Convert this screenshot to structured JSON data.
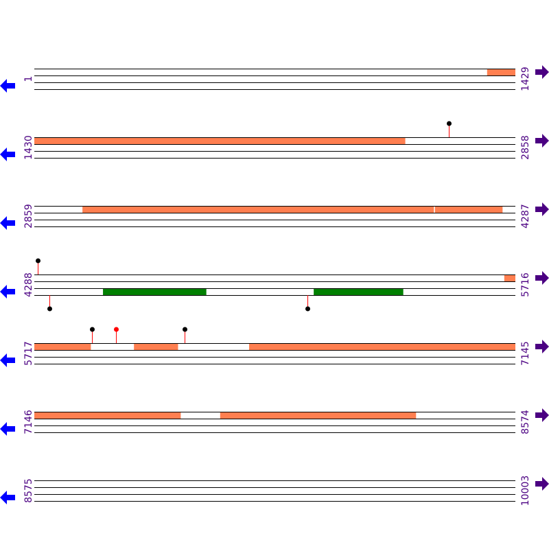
{
  "colors": {
    "line": "#000000",
    "feature_orange": "#ff7f50",
    "feature_green": "#008000",
    "label": "#4b0082",
    "left_arrow": "#0000ff",
    "right_arrow": "#4b0082",
    "stem": "#ff0000",
    "marker_black": "#000000",
    "marker_red": "#ff0000"
  },
  "rows": [
    {
      "start": "1",
      "end": "1429",
      "features": [
        {
          "track": 0,
          "from": 1346,
          "to": 1429,
          "color": "orange"
        }
      ],
      "markers": []
    },
    {
      "start": "1430",
      "end": "2858",
      "features": [
        {
          "track": 0,
          "from": 1430,
          "to": 2531,
          "color": "orange"
        }
      ],
      "markers": [
        {
          "pos": 2661,
          "direction": "up",
          "color": "black"
        }
      ]
    },
    {
      "start": "2859",
      "end": "4287",
      "features": [
        {
          "track": 0,
          "from": 3002,
          "to": 4045,
          "color": "orange"
        },
        {
          "track": 0,
          "from": 4049,
          "to": 4249,
          "color": "orange"
        }
      ],
      "markers": []
    },
    {
      "start": "4288",
      "end": "5716",
      "features": [
        {
          "track": 0,
          "from": 5684,
          "to": 5716,
          "color": "orange"
        },
        {
          "track": 2,
          "from": 4492,
          "to": 4798,
          "color": "green"
        },
        {
          "track": 2,
          "from": 5118,
          "to": 5383,
          "color": "green"
        }
      ],
      "markers": [
        {
          "pos": 4298,
          "direction": "up",
          "color": "black"
        },
        {
          "pos": 4333,
          "direction": "down",
          "color": "black"
        },
        {
          "pos": 5099,
          "direction": "down",
          "color": "black"
        }
      ]
    },
    {
      "start": "5717",
      "end": "7145",
      "features": [
        {
          "track": 0,
          "from": 5717,
          "to": 5884,
          "color": "orange"
        },
        {
          "track": 0,
          "from": 6013,
          "to": 6143,
          "color": "orange"
        },
        {
          "track": 0,
          "from": 6355,
          "to": 7145,
          "color": "orange"
        }
      ],
      "markers": [
        {
          "pos": 5888,
          "direction": "up",
          "color": "black"
        },
        {
          "pos": 5960,
          "direction": "up",
          "color": "red"
        },
        {
          "pos": 6163,
          "direction": "up",
          "color": "black"
        }
      ]
    },
    {
      "start": "7146",
      "end": "8574",
      "features": [
        {
          "track": 0,
          "from": 7146,
          "to": 7580,
          "color": "orange"
        },
        {
          "track": 0,
          "from": 7698,
          "to": 8279,
          "color": "orange"
        }
      ],
      "markers": []
    },
    {
      "start": "8575",
      "end": "10003",
      "features": [],
      "markers": []
    }
  ]
}
